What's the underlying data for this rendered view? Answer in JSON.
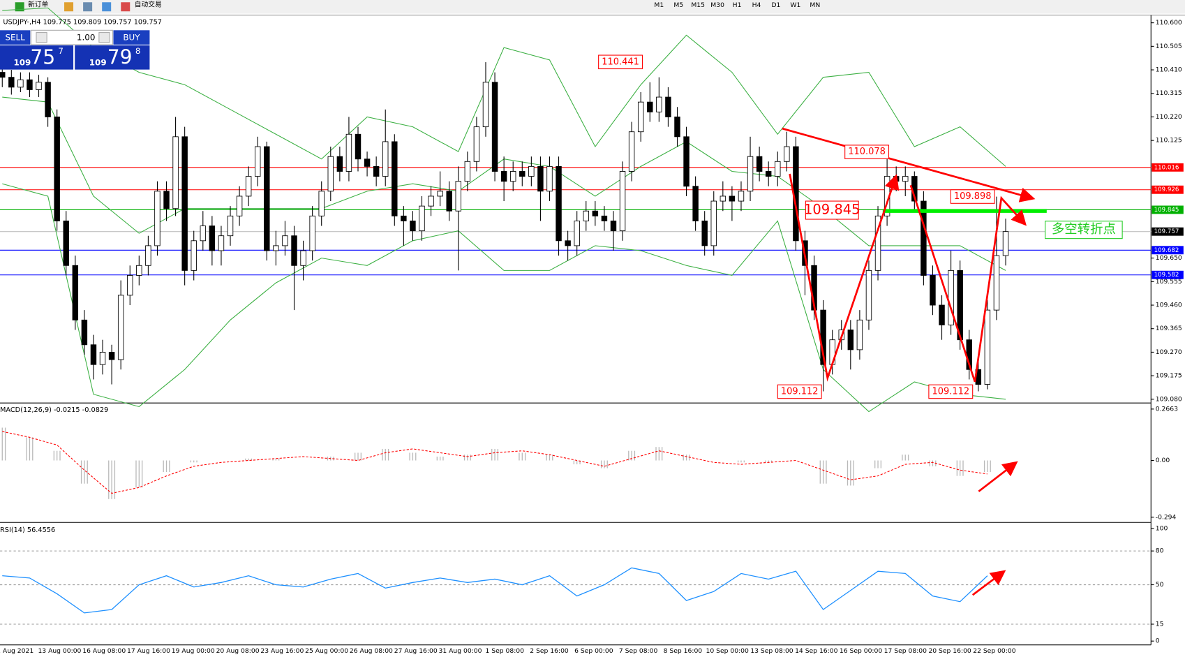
{
  "toolbar": {
    "new_order": "新订单",
    "auto_trading": "自动交易",
    "timeframes": [
      "M1",
      "M5",
      "M15",
      "M30",
      "H1",
      "H4",
      "D1",
      "W1",
      "MN"
    ]
  },
  "trade_panel": {
    "sell": "SELL",
    "buy": "BUY",
    "lot": "1.00",
    "sell_big": "109",
    "sell_pips": "75",
    "sell_frac": "7",
    "buy_big": "109",
    "buy_pips": "79",
    "buy_frac": "8"
  },
  "chart_data": [
    {
      "type": "candlestick",
      "title": "USDJPY-,H4  109.775 109.809 109.757 109.757",
      "ylim": [
        109.068,
        110.631
      ],
      "yticks": [
        {
          "value": 110.6,
          "label": "110.600"
        },
        110.505,
        {
          "value": 110.41,
          "label": "110.410"
        },
        110.315,
        {
          "value": 110.22,
          "label": "110.220"
        },
        110.125,
        {
          "value": 109.65,
          "label": "109.650"
        },
        109.555,
        {
          "value": 109.46,
          "label": "109.460"
        },
        109.365,
        {
          "value": 109.27,
          "label": "109.270"
        },
        109.175,
        {
          "value": 109.08,
          "label": "109.080"
        }
      ],
      "levels": [
        {
          "value": 110.016,
          "color": "#ff0000"
        },
        {
          "value": 109.926,
          "color": "#ff0000"
        },
        {
          "value": 109.845,
          "color": "#00b000"
        },
        {
          "value": 109.682,
          "color": "#0000ff"
        },
        {
          "value": 109.582,
          "color": "#0000ff"
        }
      ],
      "last_price": 109.757,
      "xlabels": [
        "1 Aug 2021",
        "13 Aug 00:00",
        "16 Aug 08:00",
        "17 Aug 16:00",
        "19 Aug 00:00",
        "20 Aug 08:00",
        "23 Aug 16:00",
        "25 Aug 00:00",
        "26 Aug 08:00",
        "27 Aug 16:00",
        "31 Aug 00:00",
        "1 Sep 08:00",
        "2 Sep 16:00",
        "6 Sep 00:00",
        "7 Sep 08:00",
        "8 Sep 16:00",
        "10 Sep 00:00",
        "13 Sep 08:00",
        "14 Sep 16:00",
        "16 Sep 00:00",
        "17 Sep 08:00",
        "20 Sep 16:00",
        "22 Sep 00:00"
      ],
      "candles": [
        [
          110.4,
          110.43,
          110.34,
          110.38
        ],
        [
          110.38,
          110.41,
          110.31,
          110.34
        ],
        [
          110.34,
          110.4,
          110.32,
          110.37
        ],
        [
          110.37,
          110.4,
          110.3,
          110.33
        ],
        [
          110.33,
          110.39,
          110.3,
          110.36
        ],
        [
          110.36,
          110.38,
          110.18,
          110.22
        ],
        [
          110.22,
          110.25,
          109.76,
          109.8
        ],
        [
          109.8,
          109.84,
          109.58,
          109.62
        ],
        [
          109.62,
          109.66,
          109.36,
          109.4
        ],
        [
          109.4,
          109.44,
          109.26,
          109.3
        ],
        [
          109.3,
          109.34,
          109.16,
          109.22
        ],
        [
          109.22,
          109.32,
          109.18,
          109.27
        ],
        [
          109.27,
          109.3,
          109.14,
          109.24
        ],
        [
          109.24,
          109.56,
          109.2,
          109.5
        ],
        [
          109.5,
          109.62,
          109.46,
          109.58
        ],
        [
          109.58,
          109.66,
          109.54,
          109.62
        ],
        [
          109.62,
          109.74,
          109.58,
          109.7
        ],
        [
          109.7,
          109.96,
          109.66,
          109.92
        ],
        [
          109.92,
          109.96,
          109.8,
          109.85
        ],
        [
          109.85,
          110.22,
          109.82,
          110.14
        ],
        [
          110.14,
          110.18,
          109.54,
          109.6
        ],
        [
          109.6,
          109.76,
          109.56,
          109.72
        ],
        [
          109.72,
          109.84,
          109.68,
          109.78
        ],
        [
          109.78,
          109.82,
          109.62,
          109.68
        ],
        [
          109.68,
          109.78,
          109.62,
          109.74
        ],
        [
          109.74,
          109.86,
          109.7,
          109.82
        ],
        [
          109.82,
          109.94,
          109.78,
          109.9
        ],
        [
          109.9,
          110.02,
          109.86,
          109.98
        ],
        [
          109.98,
          110.14,
          109.94,
          110.1
        ],
        [
          110.1,
          110.12,
          109.64,
          109.68
        ],
        [
          109.68,
          109.76,
          109.62,
          109.7
        ],
        [
          109.7,
          109.8,
          109.66,
          109.74
        ],
        [
          109.74,
          109.78,
          109.44,
          109.62
        ],
        [
          109.62,
          109.72,
          109.56,
          109.68
        ],
        [
          109.68,
          109.86,
          109.64,
          109.82
        ],
        [
          109.82,
          109.96,
          109.78,
          109.92
        ],
        [
          109.92,
          110.1,
          109.88,
          110.06
        ],
        [
          110.06,
          110.1,
          109.96,
          110.0
        ],
        [
          110.0,
          110.22,
          109.96,
          110.15
        ],
        [
          110.15,
          110.18,
          110.0,
          110.05
        ],
        [
          110.05,
          110.08,
          109.98,
          110.02
        ],
        [
          110.02,
          110.06,
          109.94,
          109.98
        ],
        [
          109.98,
          110.25,
          109.94,
          110.12
        ],
        [
          110.12,
          110.15,
          109.78,
          109.82
        ],
        [
          109.82,
          109.86,
          109.7,
          109.8
        ],
        [
          109.8,
          109.84,
          109.72,
          109.76
        ],
        [
          109.76,
          109.9,
          109.72,
          109.86
        ],
        [
          109.86,
          109.94,
          109.82,
          109.9
        ],
        [
          109.9,
          110.0,
          109.86,
          109.92
        ],
        [
          109.92,
          109.96,
          109.8,
          109.84
        ],
        [
          109.84,
          110.02,
          109.6,
          109.96
        ],
        [
          109.96,
          110.08,
          109.92,
          110.04
        ],
        [
          110.04,
          110.22,
          110.0,
          110.18
        ],
        [
          110.18,
          110.441,
          110.14,
          110.36
        ],
        [
          110.36,
          110.4,
          109.96,
          110.0
        ],
        [
          110.0,
          110.06,
          109.88,
          109.96
        ],
        [
          109.96,
          110.04,
          109.92,
          110.0
        ],
        [
          110.0,
          110.04,
          109.94,
          109.98
        ],
        [
          109.98,
          110.06,
          109.94,
          110.02
        ],
        [
          110.02,
          110.06,
          109.8,
          109.92
        ],
        [
          109.92,
          110.06,
          109.88,
          110.02
        ],
        [
          110.02,
          110.06,
          109.66,
          109.72
        ],
        [
          109.72,
          109.76,
          109.64,
          109.7
        ],
        [
          109.7,
          109.84,
          109.66,
          109.8
        ],
        [
          109.8,
          109.88,
          109.76,
          109.84
        ],
        [
          109.84,
          109.88,
          109.78,
          109.82
        ],
        [
          109.82,
          109.86,
          109.76,
          109.8
        ],
        [
          109.8,
          109.84,
          109.68,
          109.76
        ],
        [
          109.76,
          110.04,
          109.72,
          110.0
        ],
        [
          110.0,
          110.2,
          109.96,
          110.16
        ],
        [
          110.16,
          110.32,
          110.12,
          110.28
        ],
        [
          110.28,
          110.36,
          110.2,
          110.24
        ],
        [
          110.24,
          110.38,
          110.2,
          110.3
        ],
        [
          110.3,
          110.34,
          110.18,
          110.22
        ],
        [
          110.22,
          110.26,
          110.1,
          110.14
        ],
        [
          110.14,
          110.18,
          109.9,
          109.94
        ],
        [
          109.94,
          109.98,
          109.76,
          109.8
        ],
        [
          109.8,
          109.84,
          109.66,
          109.7
        ],
        [
          109.7,
          109.92,
          109.66,
          109.88
        ],
        [
          109.88,
          109.96,
          109.84,
          109.9
        ],
        [
          109.9,
          109.94,
          109.8,
          109.88
        ],
        [
          109.88,
          109.96,
          109.84,
          109.92
        ],
        [
          109.92,
          110.14,
          109.88,
          110.06
        ],
        [
          110.06,
          110.1,
          109.96,
          110.0
        ],
        [
          110.0,
          110.04,
          109.94,
          109.98
        ],
        [
          109.98,
          110.08,
          109.94,
          110.04
        ],
        [
          110.04,
          110.16,
          110.0,
          110.1
        ],
        [
          110.1,
          110.14,
          109.68,
          109.72
        ],
        [
          109.72,
          109.76,
          109.5,
          109.62
        ],
        [
          109.62,
          109.66,
          109.4,
          109.44
        ],
        [
          109.44,
          109.48,
          109.112,
          109.22
        ],
        [
          109.22,
          109.36,
          109.18,
          109.32
        ],
        [
          109.32,
          109.4,
          109.28,
          109.36
        ],
        [
          109.36,
          109.4,
          109.2,
          109.28
        ],
        [
          109.28,
          109.44,
          109.24,
          109.4
        ],
        [
          109.4,
          109.64,
          109.36,
          109.6
        ],
        [
          109.6,
          109.86,
          109.56,
          109.82
        ],
        [
          109.82,
          110.078,
          109.78,
          109.98
        ],
        [
          109.98,
          110.02,
          109.92,
          109.96
        ],
        [
          109.96,
          110.02,
          109.9,
          109.98
        ],
        [
          109.98,
          110.0,
          109.84,
          109.88
        ],
        [
          109.88,
          109.92,
          109.54,
          109.58
        ],
        [
          109.58,
          109.62,
          109.42,
          109.46
        ],
        [
          109.46,
          109.5,
          109.32,
          109.38
        ],
        [
          109.38,
          109.68,
          109.34,
          109.6
        ],
        [
          109.6,
          109.64,
          109.28,
          109.32
        ],
        [
          109.32,
          109.36,
          109.16,
          109.2
        ],
        [
          109.2,
          109.24,
          109.112,
          109.14
        ],
        [
          109.14,
          109.48,
          109.12,
          109.44
        ],
        [
          109.44,
          109.898,
          109.4,
          109.66
        ],
        [
          109.66,
          109.809,
          109.62,
          109.757
        ]
      ],
      "bollinger": {
        "color": "#3cb043",
        "x": [
          0,
          5,
          10,
          15,
          20,
          25,
          30,
          35,
          40,
          45,
          50,
          55,
          60,
          65,
          70,
          75,
          80,
          85,
          90,
          95,
          100,
          105,
          110
        ],
        "upper": [
          110.65,
          110.66,
          110.5,
          110.4,
          110.35,
          110.25,
          110.15,
          110.05,
          110.22,
          110.18,
          110.08,
          110.5,
          110.45,
          110.1,
          110.35,
          110.55,
          110.4,
          110.15,
          110.38,
          110.4,
          110.1,
          110.18,
          110.02
        ],
        "middle": [
          110.3,
          110.28,
          109.9,
          109.75,
          109.85,
          109.85,
          109.85,
          109.85,
          109.92,
          109.95,
          109.92,
          110.05,
          110.02,
          109.9,
          110.02,
          110.12,
          110.0,
          109.98,
          109.85,
          109.7,
          109.7,
          109.7,
          109.6
        ],
        "lower": [
          109.95,
          109.9,
          109.1,
          109.05,
          109.2,
          109.4,
          109.55,
          109.65,
          109.62,
          109.72,
          109.76,
          109.6,
          109.6,
          109.7,
          109.68,
          109.62,
          109.58,
          109.8,
          109.2,
          109.03,
          109.15,
          109.1,
          109.08
        ]
      },
      "annotations": [
        {
          "text": "110.441",
          "color": "#ff0000"
        },
        {
          "text": "110.078",
          "color": "#ff0000"
        },
        {
          "text": "109.845",
          "color": "#ff0000"
        },
        {
          "text": "109.898",
          "color": "#ff0000"
        },
        {
          "text": "109.112",
          "color": "#ff0000"
        },
        {
          "text": "109.112",
          "color": "#ff0000"
        },
        {
          "text": "多空转折点",
          "color": "#22cc22"
        }
      ]
    },
    {
      "type": "macd",
      "title": "MACD(12,26,9) -0.0215 -0.0829",
      "ylim": [
        -0.317,
        0.29
      ],
      "yticks": [
        0.2663,
        {
          "value": 0,
          "label": "0.00"
        },
        -0.294
      ],
      "x": [
        0,
        3,
        6,
        9,
        12,
        15,
        18,
        21,
        24,
        27,
        30,
        33,
        36,
        39,
        42,
        45,
        48,
        51,
        54,
        57,
        60,
        63,
        66,
        69,
        72,
        75,
        78,
        81,
        84,
        87,
        90,
        93,
        96,
        99,
        102,
        105,
        108
      ],
      "hist": [
        0.17,
        0.12,
        0.05,
        -0.12,
        -0.2,
        -0.14,
        -0.06,
        -0.01,
        0.0,
        0.01,
        0.01,
        0.0,
        0.02,
        0.04,
        0.06,
        0.04,
        0.02,
        0.03,
        0.06,
        0.04,
        0.03,
        -0.02,
        -0.04,
        0.05,
        0.07,
        0.03,
        0.0,
        -0.01,
        -0.01,
        0.0,
        -0.12,
        -0.13,
        -0.04,
        0.03,
        -0.03,
        -0.08,
        -0.06
      ],
      "signal": [
        0.15,
        0.12,
        0.08,
        -0.05,
        -0.17,
        -0.14,
        -0.08,
        -0.03,
        -0.01,
        0.0,
        0.01,
        0.02,
        0.01,
        0.0,
        0.04,
        0.06,
        0.04,
        0.02,
        0.04,
        0.05,
        0.03,
        0.0,
        -0.03,
        0.01,
        0.05,
        0.02,
        -0.01,
        -0.02,
        -0.01,
        0.0,
        -0.05,
        -0.1,
        -0.08,
        -0.02,
        -0.01,
        -0.05,
        -0.07
      ],
      "hist_color": "#b8b8b8",
      "signal_color": "#ff0000"
    },
    {
      "type": "rsi",
      "title": "RSI(14) 56.4556",
      "ylim": [
        -3.4,
        104
      ],
      "yticks": [
        100,
        80,
        50,
        15,
        0
      ],
      "x": [
        0,
        3,
        6,
        9,
        12,
        15,
        18,
        21,
        24,
        27,
        30,
        33,
        36,
        39,
        42,
        45,
        48,
        51,
        54,
        57,
        60,
        63,
        66,
        69,
        72,
        75,
        78,
        81,
        84,
        87,
        90,
        93,
        96,
        99,
        102,
        105,
        108
      ],
      "values": [
        58,
        56,
        42,
        25,
        28,
        50,
        58,
        48,
        52,
        58,
        50,
        48,
        55,
        60,
        47,
        52,
        56,
        52,
        55,
        50,
        58,
        40,
        50,
        65,
        60,
        36,
        44,
        60,
        55,
        62,
        28,
        45,
        62,
        60,
        40,
        35,
        58
      ],
      "color": "#1e90ff"
    }
  ]
}
